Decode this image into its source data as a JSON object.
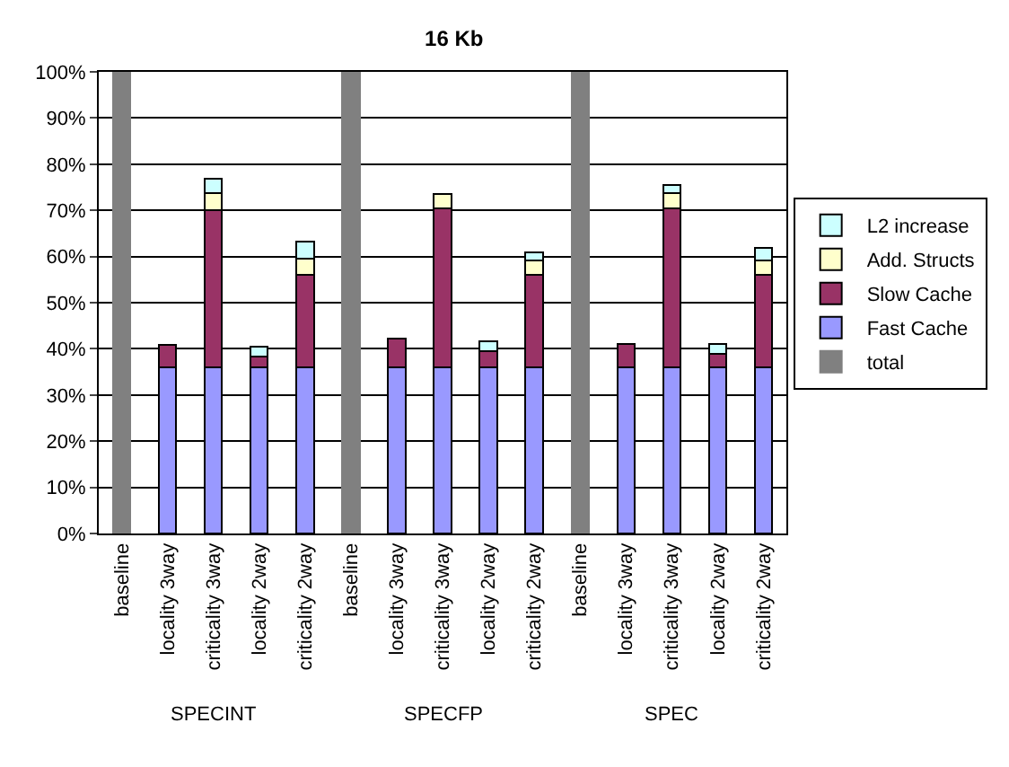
{
  "chart_data": {
    "type": "bar",
    "title": "16 Kb",
    "stacked": true,
    "categories": [
      "baseline",
      "locality 3way",
      "criticality 3way",
      "locality 2way",
      "criticality 2way",
      "baseline",
      "locality 3way",
      "criticality 3way",
      "locality 2way",
      "criticality 2way",
      "baseline",
      "locality 3way",
      "criticality 3way",
      "locality 2way",
      "criticality 2way"
    ],
    "series": [
      {
        "name": "total",
        "color": "#808080",
        "values": [
          100,
          null,
          null,
          null,
          null,
          100,
          null,
          null,
          null,
          null,
          100,
          null,
          null,
          null,
          null
        ]
      },
      {
        "name": "Fast Cache",
        "color": "#9999ff",
        "values": [
          null,
          36,
          36,
          36,
          36,
          null,
          36,
          36,
          36,
          36,
          null,
          36,
          36,
          36,
          36
        ]
      },
      {
        "name": "Slow Cache",
        "color": "#993366",
        "values": [
          null,
          4.8,
          34,
          2.4,
          20,
          null,
          6.2,
          34.5,
          3.4,
          20,
          null,
          5,
          34.5,
          3,
          20
        ]
      },
      {
        "name": "Add. Structs",
        "color": "#ffffcc",
        "values": [
          null,
          null,
          3.7,
          null,
          3.5,
          null,
          null,
          3,
          null,
          3.2,
          null,
          null,
          3.3,
          null,
          3.2
        ]
      },
      {
        "name": "L2 increase",
        "color": "#ccffff",
        "values": [
          null,
          null,
          3.2,
          2.1,
          3.8,
          null,
          null,
          null,
          2.2,
          1.7,
          null,
          null,
          1.7,
          2,
          2.6
        ]
      }
    ],
    "ylim": [
      0,
      100
    ],
    "yticks": [
      {
        "value": 0,
        "label": "0%"
      },
      {
        "value": 10,
        "label": "10%"
      },
      {
        "value": 20,
        "label": "20%"
      },
      {
        "value": 30,
        "label": "30%"
      },
      {
        "value": 40,
        "label": "40%"
      },
      {
        "value": 50,
        "label": "50%"
      },
      {
        "value": 60,
        "label": "60%"
      },
      {
        "value": 70,
        "label": "70%"
      },
      {
        "value": 80,
        "label": "80%"
      },
      {
        "value": 90,
        "label": "90%"
      },
      {
        "value": 100,
        "label": "100%"
      }
    ],
    "annotations": [
      "SPECINT",
      "SPECFP",
      "SPEC"
    ],
    "grid": "y",
    "legend": "right"
  }
}
